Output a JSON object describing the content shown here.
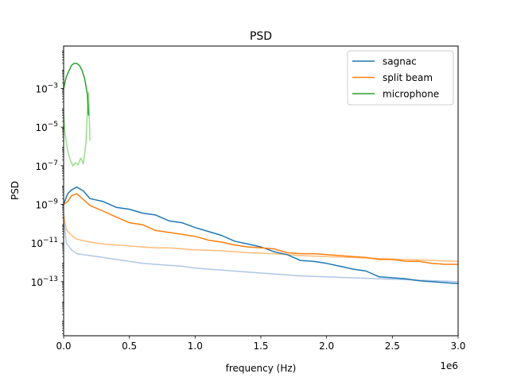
{
  "chart_data": {
    "type": "line",
    "title": "PSD",
    "xlabel": "frequency (Hz)",
    "ylabel": "PSD",
    "x_offset_label": "1e6",
    "xscale": "linear",
    "yscale": "log",
    "xlim": [
      0,
      3000000
    ],
    "ylim_log10": [
      -15.8,
      -0.8
    ],
    "xticks": [
      0,
      500000,
      1000000,
      1500000,
      2000000,
      2500000,
      3000000
    ],
    "xtick_labels": [
      "0.0",
      "0.5",
      "1.0",
      "1.5",
      "2.0",
      "2.5",
      "3.0"
    ],
    "yticks_log10": [
      -13,
      -11,
      -9,
      -7,
      -5,
      -3
    ],
    "ytick_labels": [
      {
        "base": "10",
        "exp": "−13"
      },
      {
        "base": "10",
        "exp": "−11"
      },
      {
        "base": "10",
        "exp": "−9"
      },
      {
        "base": "10",
        "exp": "−7"
      },
      {
        "base": "10",
        "exp": "−5"
      },
      {
        "base": "10",
        "exp": "−3"
      }
    ],
    "grid": false,
    "legend_position": "top-right",
    "series": [
      {
        "name": "sagnac",
        "color": "#1f77b4",
        "x": [
          0,
          30000,
          60000,
          100000,
          150000,
          200000,
          300000,
          400000,
          500000,
          600000,
          700000,
          800000,
          900000,
          1000000,
          1100000,
          1200000,
          1300000,
          1400000,
          1500000,
          1600000,
          1700000,
          1800000,
          1900000,
          2000000,
          2100000,
          2200000,
          2300000,
          2400000,
          2500000,
          2600000,
          2700000,
          2800000,
          2900000,
          3000000
        ],
        "log10_y": [
          -9.0,
          -8.45,
          -8.25,
          -8.1,
          -8.3,
          -8.7,
          -8.85,
          -9.15,
          -9.25,
          -9.45,
          -9.55,
          -9.85,
          -9.95,
          -10.2,
          -10.4,
          -10.6,
          -10.9,
          -11.05,
          -11.2,
          -11.45,
          -11.6,
          -11.9,
          -11.95,
          -12.05,
          -12.2,
          -12.35,
          -12.45,
          -12.75,
          -12.8,
          -12.85,
          -12.95,
          -13.0,
          -13.05,
          -13.1
        ]
      },
      {
        "name": "split beam",
        "color": "#ff7f0e",
        "x": [
          0,
          30000,
          60000,
          100000,
          150000,
          200000,
          300000,
          400000,
          500000,
          600000,
          700000,
          800000,
          900000,
          1000000,
          1100000,
          1200000,
          1300000,
          1400000,
          1500000,
          1600000,
          1700000,
          1800000,
          1900000,
          2000000,
          2100000,
          2200000,
          2300000,
          2400000,
          2500000,
          2600000,
          2700000,
          2800000,
          2900000,
          3000000
        ],
        "log10_y": [
          -9.0,
          -8.85,
          -8.55,
          -8.45,
          -8.75,
          -9.05,
          -9.35,
          -9.65,
          -9.95,
          -10.05,
          -10.35,
          -10.45,
          -10.55,
          -10.65,
          -10.85,
          -10.95,
          -11.1,
          -11.2,
          -11.25,
          -11.3,
          -11.5,
          -11.55,
          -11.55,
          -11.6,
          -11.65,
          -11.7,
          -11.75,
          -11.85,
          -11.85,
          -11.95,
          -11.95,
          -12.05,
          -12.1,
          -12.1
        ]
      },
      {
        "name": "microphone",
        "color": "#2ca02c",
        "x": [
          0,
          20000,
          40000,
          60000,
          80000,
          100000,
          120000,
          140000,
          160000,
          180000,
          190000
        ],
        "log10_y": [
          -3.0,
          -2.4,
          -2.1,
          -1.8,
          -1.7,
          -1.7,
          -1.8,
          -2.05,
          -2.5,
          -3.3,
          -4.4
        ]
      }
    ],
    "background_traces": [
      {
        "of_series": "sagnac",
        "color": "#aec7e8",
        "x": [
          0,
          20000,
          60000,
          100000,
          200000,
          300000,
          400000,
          500000,
          600000,
          700000,
          800000,
          900000,
          1000000,
          1200000,
          1400000,
          1600000,
          1800000,
          2000000,
          2200000,
          2400000,
          2600000,
          2800000,
          3000000
        ],
        "log10_y": [
          -9.6,
          -11.0,
          -11.35,
          -11.55,
          -11.65,
          -11.75,
          -11.85,
          -11.95,
          -12.05,
          -12.1,
          -12.15,
          -12.2,
          -12.3,
          -12.4,
          -12.5,
          -12.6,
          -12.7,
          -12.75,
          -12.8,
          -12.85,
          -12.9,
          -12.95,
          -13.0
        ]
      },
      {
        "of_series": "split beam",
        "color": "#ffbb78",
        "x": [
          0,
          20000,
          60000,
          100000,
          200000,
          300000,
          400000,
          500000,
          600000,
          700000,
          800000,
          900000,
          1000000,
          1200000,
          1400000,
          1600000,
          1800000,
          2000000,
          2200000,
          2400000,
          2600000,
          2800000,
          3000000
        ],
        "log10_y": [
          -9.5,
          -10.3,
          -10.6,
          -10.8,
          -10.95,
          -11.05,
          -11.1,
          -11.15,
          -11.2,
          -11.25,
          -11.25,
          -11.3,
          -11.35,
          -11.4,
          -11.5,
          -11.55,
          -11.65,
          -11.7,
          -11.75,
          -11.8,
          -11.85,
          -11.9,
          -11.95
        ]
      },
      {
        "of_series": "microphone",
        "color": "#98df8a",
        "x": [
          0,
          10000,
          30000,
          50000,
          70000,
          90000,
          110000,
          130000,
          150000,
          170000,
          180000,
          190000,
          200000
        ],
        "log10_y": [
          -4.3,
          -5.3,
          -6.2,
          -6.7,
          -7.0,
          -6.85,
          -6.95,
          -6.6,
          -6.9,
          -5.8,
          -4.2,
          -3.2,
          -5.7
        ]
      }
    ]
  }
}
